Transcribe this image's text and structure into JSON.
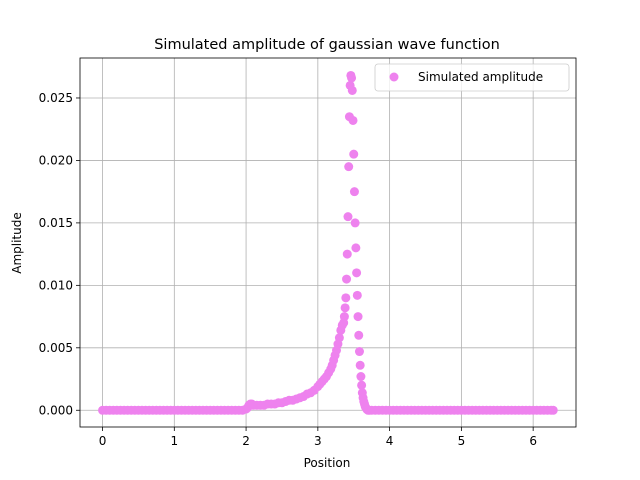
{
  "chart_data": {
    "type": "scatter",
    "title": "Simulated amplitude of gaussian wave function",
    "xlabel": "Position",
    "ylabel": "Amplitude",
    "xlim": [
      -0.314,
      6.597
    ],
    "ylim": [
      -0.00134,
      0.0282
    ],
    "xticks": [
      {
        "value": 0,
        "label": "0"
      },
      {
        "value": 1,
        "label": "1"
      },
      {
        "value": 2,
        "label": "2"
      },
      {
        "value": 3,
        "label": "3"
      },
      {
        "value": 4,
        "label": "4"
      },
      {
        "value": 5,
        "label": "5"
      },
      {
        "value": 6,
        "label": "6"
      }
    ],
    "yticks": [
      {
        "value": 0.0,
        "label": "0.000"
      },
      {
        "value": 0.005,
        "label": "0.005"
      },
      {
        "value": 0.01,
        "label": "0.010"
      },
      {
        "value": 0.015,
        "label": "0.015"
      },
      {
        "value": 0.02,
        "label": "0.020"
      },
      {
        "value": 0.025,
        "label": "0.025"
      }
    ],
    "grid": true,
    "legend_position": "top-right",
    "color": "#ee82ee",
    "series": [
      {
        "name": "Simulated amplitude",
        "x": [
          0,
          0.05,
          0.1,
          0.15,
          0.2,
          0.25,
          0.3,
          0.35,
          0.4,
          0.45,
          0.5,
          0.55,
          0.6,
          0.65,
          0.7,
          0.75,
          0.8,
          0.85,
          0.9,
          0.95,
          1.0,
          1.05,
          1.1,
          1.15,
          1.2,
          1.25,
          1.3,
          1.35,
          1.4,
          1.45,
          1.5,
          1.55,
          1.6,
          1.65,
          1.7,
          1.75,
          1.8,
          1.85,
          1.9,
          1.95,
          2.0,
          2.02,
          2.04,
          2.06,
          2.08,
          2.1,
          2.15,
          2.2,
          2.25,
          2.3,
          2.35,
          2.4,
          2.45,
          2.5,
          2.55,
          2.6,
          2.65,
          2.7,
          2.75,
          2.8,
          2.85,
          2.9,
          2.95,
          3.0,
          3.03,
          3.06,
          3.09,
          3.12,
          3.15,
          3.18,
          3.2,
          3.22,
          3.24,
          3.26,
          3.28,
          3.3,
          3.32,
          3.34,
          3.36,
          3.37,
          3.38,
          3.39,
          3.4,
          3.41,
          3.42,
          3.43,
          3.44,
          3.45,
          3.46,
          3.47,
          3.48,
          3.49,
          3.5,
          3.51,
          3.52,
          3.53,
          3.54,
          3.55,
          3.56,
          3.57,
          3.58,
          3.59,
          3.6,
          3.61,
          3.62,
          3.63,
          3.64,
          3.65,
          3.66,
          3.67,
          3.68,
          3.69,
          3.7,
          3.72,
          3.75,
          3.8,
          3.85,
          3.9,
          3.95,
          4.0,
          4.05,
          4.1,
          4.15,
          4.2,
          4.25,
          4.3,
          4.35,
          4.4,
          4.45,
          4.5,
          4.55,
          4.6,
          4.65,
          4.7,
          4.75,
          4.8,
          4.85,
          4.9,
          4.95,
          5.0,
          5.05,
          5.1,
          5.15,
          5.2,
          5.25,
          5.3,
          5.35,
          5.4,
          5.45,
          5.5,
          5.55,
          5.6,
          5.65,
          5.7,
          5.75,
          5.8,
          5.85,
          5.9,
          5.95,
          6.0,
          6.05,
          6.1,
          6.15,
          6.2,
          6.25,
          6.28
        ],
        "y": [
          0,
          0,
          0,
          0,
          0,
          0,
          0,
          0,
          0,
          0,
          0,
          0,
          0,
          0,
          0,
          0,
          0,
          0,
          0,
          0,
          0,
          0,
          0,
          0,
          0,
          0,
          0,
          0,
          0,
          0,
          0,
          0,
          0,
          0,
          0,
          0,
          0,
          0,
          0,
          0,
          0.0001,
          0.0002,
          0.0004,
          0.0005,
          0.0005,
          0.0004,
          0.0004,
          0.0004,
          0.0004,
          0.0005,
          0.0005,
          0.0005,
          0.0006,
          0.0006,
          0.0007,
          0.0008,
          0.0008,
          0.0009,
          0.001,
          0.0011,
          0.0013,
          0.0014,
          0.0016,
          0.0019,
          0.0021,
          0.0023,
          0.0025,
          0.0027,
          0.003,
          0.0033,
          0.0036,
          0.004,
          0.0044,
          0.0048,
          0.0053,
          0.0058,
          0.0064,
          0.0068,
          0.007,
          0.0075,
          0.0082,
          0.009,
          0.0105,
          0.0125,
          0.0155,
          0.0195,
          0.0235,
          0.026,
          0.0268,
          0.0266,
          0.0256,
          0.0232,
          0.0205,
          0.0175,
          0.015,
          0.013,
          0.011,
          0.0092,
          0.0075,
          0.006,
          0.0047,
          0.0036,
          0.0027,
          0.002,
          0.0014,
          0.001,
          0.0007,
          0.0005,
          0.0003,
          0.0002,
          0.0001,
          5e-05,
          0,
          0,
          0,
          0,
          0,
          0,
          0,
          0,
          0,
          0,
          0,
          0,
          0,
          0,
          0,
          0,
          0,
          0,
          0,
          0,
          0,
          0,
          0,
          0,
          0,
          0,
          0,
          0,
          0,
          0,
          0,
          0,
          0,
          0,
          0,
          0,
          0,
          0,
          0,
          0,
          0,
          0,
          0,
          0,
          0,
          0,
          0,
          0,
          0,
          0,
          0,
          0,
          0,
          0
        ]
      }
    ]
  }
}
